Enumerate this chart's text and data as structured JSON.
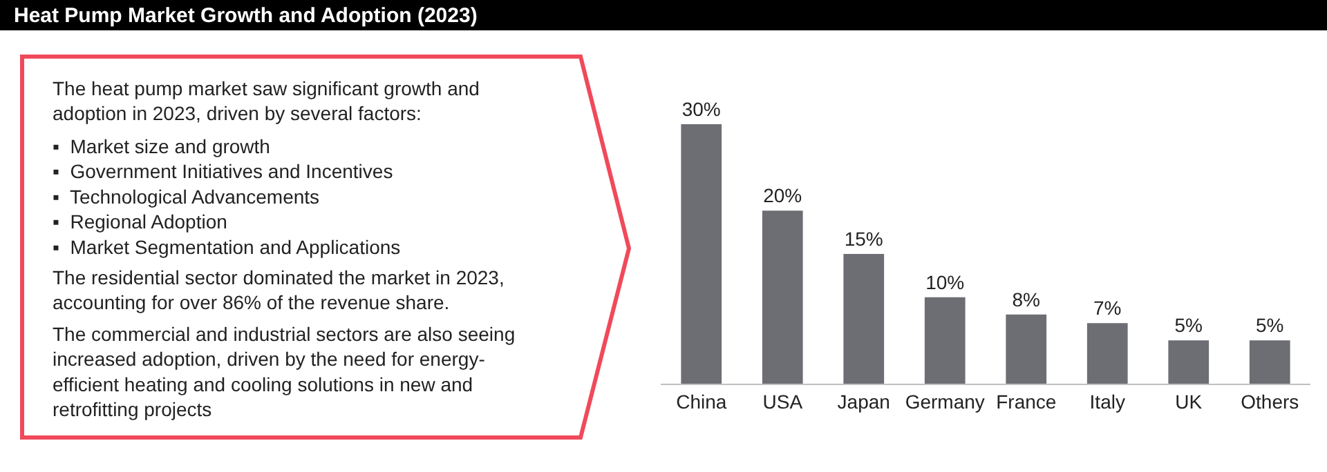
{
  "chart_data": {
    "type": "bar",
    "title": "Heat Pump Market Growth and Adoption (2023)",
    "categories": [
      "China",
      "USA",
      "Japan",
      "Germany",
      "France",
      "Italy",
      "UK",
      "Others"
    ],
    "values": [
      30,
      20,
      15,
      10,
      8,
      7,
      5,
      5
    ],
    "value_labels": [
      "30%",
      "20%",
      "15%",
      "10%",
      "8%",
      "7%",
      "5%",
      "5%"
    ],
    "color": "#6d6e73",
    "annotations": [
      "The heat pump market saw significant growth and\nadoption in 2023, driven by several factors:",
      "▪  Market size and growth\n▪  Government Initiatives and Incentives\n▪  Technological Advancements\n▪  Regional Adoption\n▪  Market Segmentation and Applications",
      "The residential sector dominated the market in 2023,\naccounting for over 86% of the revenue share.",
      "The commercial and industrial sectors are also seeing\nincreased adoption, driven by the need for energy-\nefficient heating and cooling solutions in new and\nretrofitting projects"
    ]
  }
}
